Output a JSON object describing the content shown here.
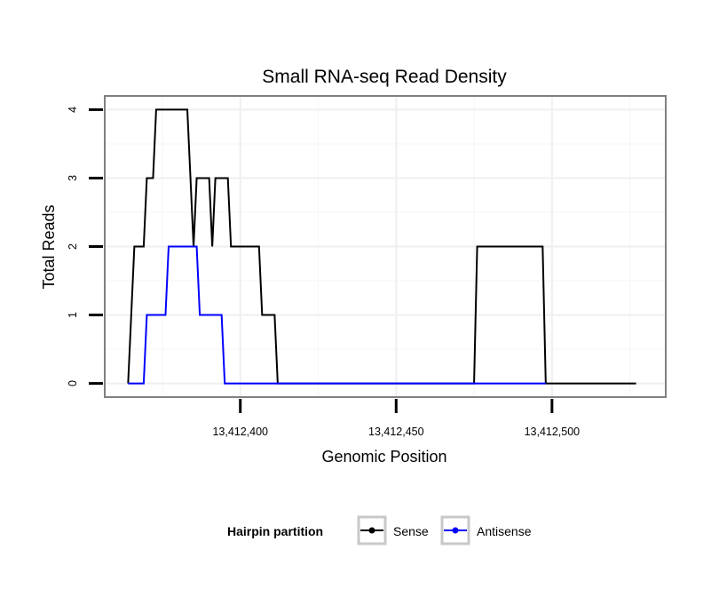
{
  "chart_data": {
    "type": "line",
    "title": "Small RNA-seq Read Density",
    "xlabel": "Genomic Position",
    "ylabel": "Total Reads",
    "xlim": [
      13412356.5,
      13412536.5
    ],
    "ylim": [
      -0.2,
      4.2
    ],
    "x_ticks": [
      {
        "value": 13412400,
        "label": "13,412,400"
      },
      {
        "value": 13412450,
        "label": "13,412,450"
      },
      {
        "value": 13412500,
        "label": "13,412,500"
      }
    ],
    "y_ticks": [
      {
        "value": 0,
        "label": "0"
      },
      {
        "value": 1,
        "label": "1"
      },
      {
        "value": 2,
        "label": "2"
      },
      {
        "value": 3,
        "label": "3"
      },
      {
        "value": 4,
        "label": "4"
      }
    ],
    "grid": true,
    "legend": {
      "title": "Hairpin partition",
      "position": "bottom"
    },
    "series": [
      {
        "name": "Sense",
        "color": "#000000",
        "x": [
          13412364,
          13412366,
          13412367,
          13412369,
          13412370,
          13412372,
          13412373,
          13412374,
          13412383,
          13412384,
          13412385,
          13412386,
          13412387,
          13412390,
          13412391,
          13412392,
          13412393,
          13412396,
          13412397,
          13412406,
          13412407,
          13412410,
          13412411,
          13412412,
          13412475,
          13412476,
          13412497,
          13412498,
          13412527
        ],
        "y": [
          0,
          2,
          2,
          2,
          3,
          3,
          4,
          4,
          4,
          3,
          2,
          3,
          3,
          3,
          2,
          3,
          3,
          3,
          2,
          2,
          1,
          1,
          1,
          0,
          0,
          2,
          2,
          0,
          0
        ]
      },
      {
        "name": "Antisense",
        "color": "#0000ff",
        "x": [
          13412364,
          13412369,
          13412370,
          13412376,
          13412377,
          13412386,
          13412387,
          13412394,
          13412395,
          13412412,
          13412475,
          13412498
        ],
        "y": [
          0,
          0,
          1,
          1,
          2,
          2,
          1,
          1,
          0,
          0,
          0,
          0
        ]
      }
    ]
  }
}
